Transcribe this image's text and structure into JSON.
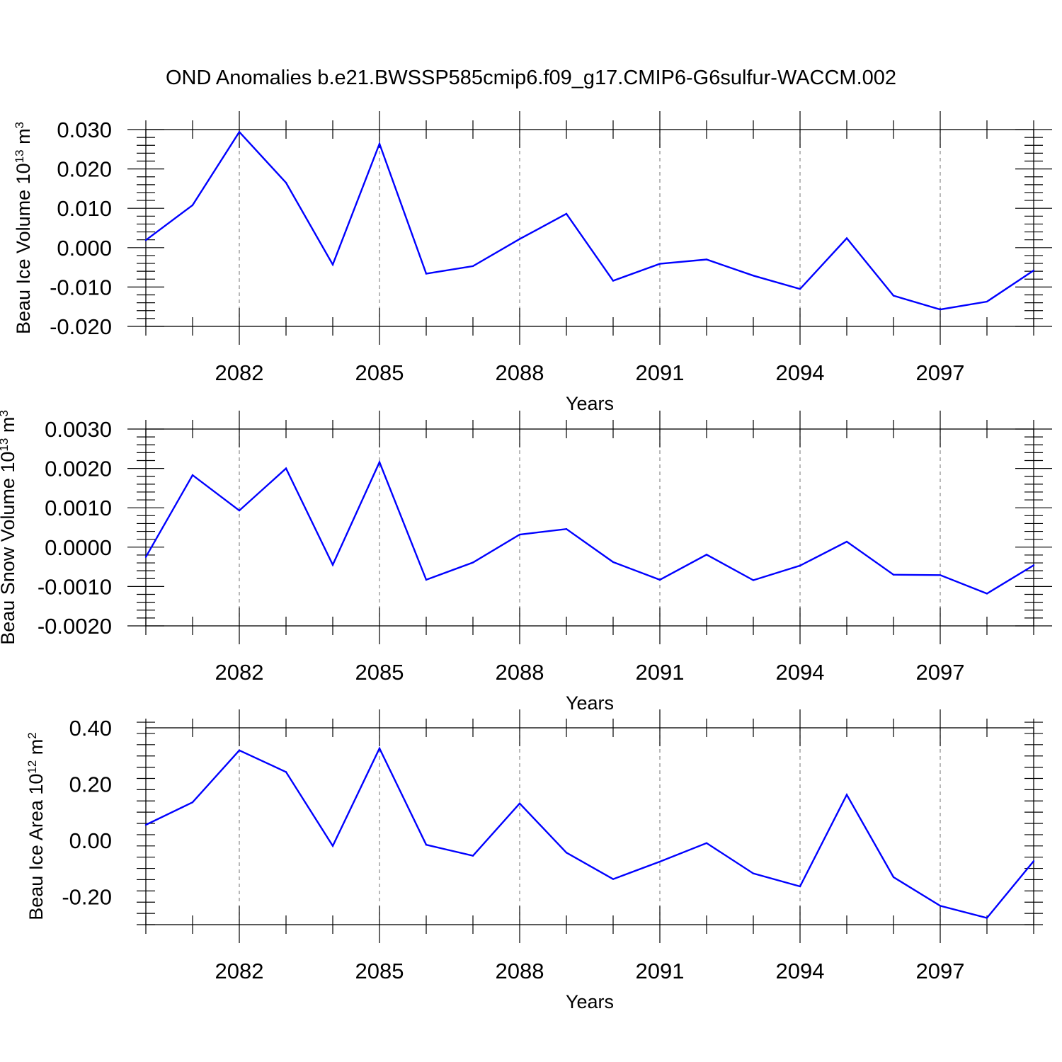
{
  "title": "OND Anomalies b.e21.BWSSP585cmip6.f09_g17.CMIP6-G6sulfur-WACCM.002",
  "colors": {
    "series": "#0000ff",
    "axis": "#000000",
    "grid": "#888888"
  },
  "chart_data": [
    {
      "type": "line",
      "ylabel": {
        "text": "Beau Ice Volume 10",
        "exp": "13",
        "unit_text": " m",
        "unit_exp": "3"
      },
      "xlabel": "Years",
      "xlim": [
        2080,
        2099
      ],
      "ylim": [
        -0.02,
        0.03
      ],
      "yticks": [
        -0.02,
        -0.01,
        0.0,
        0.01,
        0.02,
        0.03
      ],
      "ytick_labels": [
        "-0.020",
        "-0.010",
        "0.000",
        "0.010",
        "0.020",
        "0.030"
      ],
      "xticks": [
        2082,
        2085,
        2088,
        2091,
        2094,
        2097
      ],
      "xtick_labels": [
        "2082",
        "2085",
        "2088",
        "2091",
        "2094",
        "2097"
      ],
      "grid": "vertical dashed at major x ticks",
      "x": [
        2080,
        2081,
        2082,
        2083,
        2084,
        2085,
        2086,
        2087,
        2088,
        2089,
        2090,
        2091,
        2092,
        2093,
        2094,
        2095,
        2096,
        2097,
        2098,
        2099
      ],
      "series": [
        {
          "values": [
            0.0019,
            0.0108,
            0.0294,
            0.0165,
            -0.0043,
            0.0264,
            -0.0066,
            -0.0047,
            0.0022,
            0.0086,
            -0.0084,
            -0.0041,
            -0.003,
            -0.0071,
            -0.0105,
            0.0024,
            -0.0122,
            -0.0157,
            -0.0137,
            -0.0058
          ]
        }
      ]
    },
    {
      "type": "line",
      "ylabel": {
        "text": "Beau Snow Volume 10",
        "exp": "13",
        "unit_text": " m",
        "unit_exp": "3"
      },
      "xlabel": "Years",
      "xlim": [
        2080,
        2099
      ],
      "ylim": [
        -0.002,
        0.003
      ],
      "yticks": [
        -0.002,
        -0.001,
        0.0,
        0.001,
        0.002,
        0.003
      ],
      "ytick_labels": [
        "-0.0020",
        "-0.0010",
        "0.0000",
        "0.0010",
        "0.0020",
        "0.0030"
      ],
      "xticks": [
        2082,
        2085,
        2088,
        2091,
        2094,
        2097
      ],
      "xtick_labels": [
        "2082",
        "2085",
        "2088",
        "2091",
        "2094",
        "2097"
      ],
      "grid": "vertical dashed at major x ticks",
      "x": [
        2080,
        2081,
        2082,
        2083,
        2084,
        2085,
        2086,
        2087,
        2088,
        2089,
        2090,
        2091,
        2092,
        2093,
        2094,
        2095,
        2096,
        2097,
        2098,
        2099
      ],
      "series": [
        {
          "values": [
            -0.00025,
            0.00183,
            0.00093,
            0.002,
            -0.00045,
            0.00216,
            -0.00083,
            -0.00039,
            0.00032,
            0.00046,
            -0.00038,
            -0.00083,
            -0.00019,
            -0.00084,
            -0.00047,
            0.00014,
            -0.0007,
            -0.00071,
            -0.00118,
            -0.00046
          ]
        }
      ]
    },
    {
      "type": "line",
      "ylabel": {
        "text": "Beau Ice Area 10",
        "exp": "12",
        "unit_text": " m",
        "unit_exp": "2"
      },
      "xlabel": "Years",
      "xlim": [
        2080,
        2099
      ],
      "ylim": [
        -0.3,
        0.4
      ],
      "yticks": [
        -0.2,
        0.0,
        0.2,
        0.4
      ],
      "ytick_labels": [
        "-0.20",
        "0.00",
        "0.20",
        "0.40"
      ],
      "xticks": [
        2082,
        2085,
        2088,
        2091,
        2094,
        2097
      ],
      "xtick_labels": [
        "2082",
        "2085",
        "2088",
        "2091",
        "2094",
        "2097"
      ],
      "grid": "vertical dashed at major x ticks",
      "x": [
        2080,
        2081,
        2082,
        2083,
        2084,
        2085,
        2086,
        2087,
        2088,
        2089,
        2090,
        2091,
        2092,
        2093,
        2094,
        2095,
        2096,
        2097,
        2098,
        2099
      ],
      "series": [
        {
          "values": [
            0.055,
            0.135,
            0.32,
            0.243,
            -0.02,
            0.327,
            -0.016,
            -0.055,
            0.131,
            -0.044,
            -0.138,
            -0.076,
            -0.01,
            -0.118,
            -0.164,
            0.162,
            -0.131,
            -0.233,
            -0.276,
            -0.074
          ]
        }
      ]
    }
  ]
}
